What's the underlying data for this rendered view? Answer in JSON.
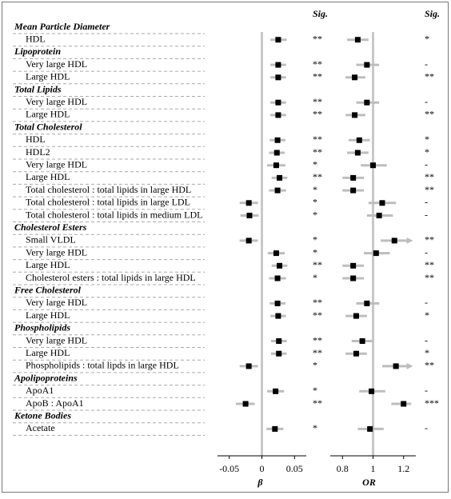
{
  "chart_data": {
    "type": "forest",
    "panels": [
      {
        "key": "beta",
        "xlabel": "β",
        "sig_label": "Sig.",
        "xlim": [
          -0.068,
          0.068
        ],
        "xticks": [
          {
            "value": -0.05,
            "label": "-0.05"
          },
          0,
          0.05
        ],
        "ref": 0
      },
      {
        "key": "or",
        "xlabel": "OR",
        "sig_label": "Sig.",
        "xlim": [
          0.72,
          1.28
        ],
        "xticks": [
          0.8,
          1,
          1.2
        ],
        "ref": 1
      }
    ],
    "groups": [
      {
        "name": "Mean Particle Diameter",
        "items": [
          {
            "label": "HDL",
            "beta": {
              "est": 0.025,
              "lo": 0.013,
              "hi": 0.038,
              "sig": "**"
            },
            "or": {
              "est": 0.9,
              "lo": 0.83,
              "hi": 0.97,
              "sig": "*"
            }
          }
        ]
      },
      {
        "name": "Lipoprotein",
        "items": [
          {
            "label": "Very large HDL",
            "beta": {
              "est": 0.025,
              "lo": 0.013,
              "hi": 0.037,
              "sig": "**"
            },
            "or": {
              "est": 0.96,
              "lo": 0.89,
              "hi": 1.04,
              "sig": "-"
            }
          },
          {
            "label": "Large HDL",
            "beta": {
              "est": 0.025,
              "lo": 0.013,
              "hi": 0.037,
              "sig": "**"
            },
            "or": {
              "est": 0.88,
              "lo": 0.82,
              "hi": 0.95,
              "sig": "**"
            }
          }
        ]
      },
      {
        "name": "Total Lipids",
        "items": [
          {
            "label": "Very large HDL",
            "beta": {
              "est": 0.025,
              "lo": 0.013,
              "hi": 0.037,
              "sig": "**"
            },
            "or": {
              "est": 0.96,
              "lo": 0.89,
              "hi": 1.04,
              "sig": "-"
            }
          },
          {
            "label": "Large HDL",
            "beta": {
              "est": 0.025,
              "lo": 0.013,
              "hi": 0.037,
              "sig": "**"
            },
            "or": {
              "est": 0.88,
              "lo": 0.82,
              "hi": 0.95,
              "sig": "**"
            }
          }
        ]
      },
      {
        "name": "Total Cholesterol",
        "items": [
          {
            "label": "HDL",
            "beta": {
              "est": 0.024,
              "lo": 0.012,
              "hi": 0.036,
              "sig": "**"
            },
            "or": {
              "est": 0.91,
              "lo": 0.84,
              "hi": 0.98,
              "sig": "*"
            }
          },
          {
            "label": "HDL2",
            "beta": {
              "est": 0.023,
              "lo": 0.011,
              "hi": 0.035,
              "sig": "**"
            },
            "or": {
              "est": 0.9,
              "lo": 0.83,
              "hi": 0.97,
              "sig": "*"
            }
          },
          {
            "label": "Very large HDL",
            "beta": {
              "est": 0.022,
              "lo": 0.008,
              "hi": 0.036,
              "sig": "*"
            },
            "or": {
              "est": 1.0,
              "lo": 0.92,
              "hi": 1.09,
              "sig": "-"
            }
          },
          {
            "label": "Large HDL",
            "beta": {
              "est": 0.027,
              "lo": 0.015,
              "hi": 0.039,
              "sig": "**"
            },
            "or": {
              "est": 0.87,
              "lo": 0.8,
              "hi": 0.94,
              "sig": "**"
            }
          },
          {
            "label": "Total cholesterol : total lipids in large HDL",
            "beta": {
              "est": 0.024,
              "lo": 0.011,
              "hi": 0.037,
              "sig": "*"
            },
            "or": {
              "est": 0.87,
              "lo": 0.8,
              "hi": 0.94,
              "sig": "**"
            }
          },
          {
            "label": "Total cholesterol : total lipids in large LDL",
            "beta": {
              "est": -0.02,
              "lo": -0.034,
              "hi": -0.006,
              "sig": "*"
            },
            "or": {
              "est": 1.06,
              "lo": 0.97,
              "hi": 1.15,
              "sig": "-"
            }
          },
          {
            "label": "Total cholesterol : total lipids in medium LDL",
            "beta": {
              "est": -0.019,
              "lo": -0.033,
              "hi": -0.005,
              "sig": "*"
            },
            "or": {
              "est": 1.04,
              "lo": 0.96,
              "hi": 1.13,
              "sig": "-"
            }
          }
        ]
      },
      {
        "name": "Cholesterol Esters",
        "items": [
          {
            "label": "Small VLDL",
            "beta": {
              "est": -0.02,
              "lo": -0.034,
              "hi": -0.006,
              "sig": "*"
            },
            "or": {
              "est": 1.14,
              "lo": 1.05,
              "hi": 1.22,
              "sig": "**",
              "arrow": true
            }
          },
          {
            "label": "Very large HDL",
            "beta": {
              "est": 0.022,
              "lo": 0.009,
              "hi": 0.035,
              "sig": "*"
            },
            "or": {
              "est": 1.02,
              "lo": 0.94,
              "hi": 1.11,
              "sig": "-"
            }
          },
          {
            "label": "Large HDL",
            "beta": {
              "est": 0.027,
              "lo": 0.015,
              "hi": 0.039,
              "sig": "**"
            },
            "or": {
              "est": 0.87,
              "lo": 0.8,
              "hi": 0.94,
              "sig": "**"
            }
          },
          {
            "label": "Cholesterol esters : total lipids in large HDL",
            "beta": {
              "est": 0.024,
              "lo": 0.011,
              "hi": 0.037,
              "sig": "*"
            },
            "or": {
              "est": 0.87,
              "lo": 0.8,
              "hi": 0.94,
              "sig": "**"
            }
          }
        ]
      },
      {
        "name": "Free Cholesterol",
        "items": [
          {
            "label": "Very large HDL",
            "beta": {
              "est": 0.024,
              "lo": 0.012,
              "hi": 0.036,
              "sig": "**"
            },
            "or": {
              "est": 0.96,
              "lo": 0.89,
              "hi": 1.04,
              "sig": "-"
            }
          },
          {
            "label": "Large HDL",
            "beta": {
              "est": 0.025,
              "lo": 0.013,
              "hi": 0.037,
              "sig": "**"
            },
            "or": {
              "est": 0.89,
              "lo": 0.82,
              "hi": 0.96,
              "sig": "*"
            }
          }
        ]
      },
      {
        "name": "Phospholipids",
        "items": [
          {
            "label": "Very large HDL",
            "beta": {
              "est": 0.026,
              "lo": 0.014,
              "hi": 0.038,
              "sig": "**"
            },
            "or": {
              "est": 0.93,
              "lo": 0.86,
              "hi": 1.0,
              "sig": "-"
            }
          },
          {
            "label": "Large HDL",
            "beta": {
              "est": 0.026,
              "lo": 0.014,
              "hi": 0.038,
              "sig": "**"
            },
            "or": {
              "est": 0.89,
              "lo": 0.82,
              "hi": 0.96,
              "sig": "*"
            }
          },
          {
            "label": "Phospholipids : total lipds in large HDL",
            "beta": {
              "est": -0.02,
              "lo": -0.034,
              "hi": -0.006,
              "sig": "*"
            },
            "or": {
              "est": 1.15,
              "lo": 1.06,
              "hi": 1.22,
              "sig": "**",
              "arrow": true
            }
          }
        ]
      },
      {
        "name": "Apolipoproteins",
        "items": [
          {
            "label": "ApoA1",
            "beta": {
              "est": 0.021,
              "lo": 0.008,
              "hi": 0.034,
              "sig": "*"
            },
            "or": {
              "est": 0.99,
              "lo": 0.91,
              "hi": 1.08,
              "sig": "-"
            }
          },
          {
            "label": "ApoB : ApoA1",
            "beta": {
              "est": -0.025,
              "lo": -0.04,
              "hi": -0.011,
              "sig": "**"
            },
            "or": {
              "est": 1.2,
              "lo": 1.12,
              "hi": 1.25,
              "sig": "***"
            }
          }
        ]
      },
      {
        "name": "Ketone Bodies",
        "items": [
          {
            "label": "Acetate",
            "beta": {
              "est": 0.02,
              "lo": 0.007,
              "hi": 0.033,
              "sig": "*"
            },
            "or": {
              "est": 0.98,
              "lo": 0.9,
              "hi": 1.07,
              "sig": "-"
            }
          }
        ]
      }
    ]
  }
}
